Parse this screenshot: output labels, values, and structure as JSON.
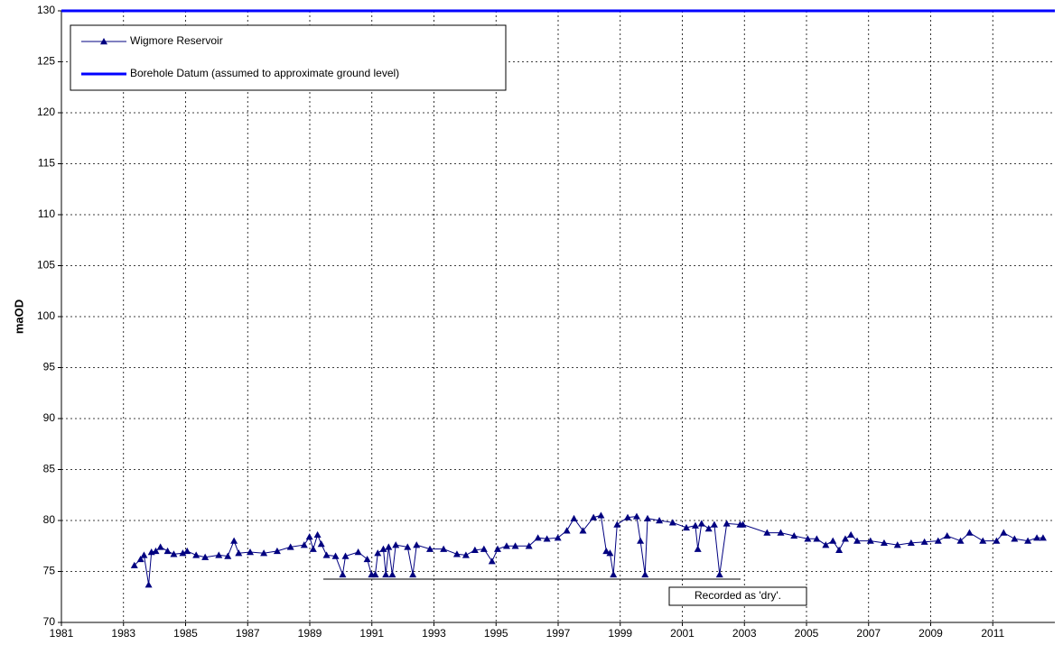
{
  "chart_data": {
    "type": "line",
    "ylabel": "maOD",
    "annotation": "Recorded as 'dry'.",
    "xlim": [
      1981,
      2013
    ],
    "xticks": [
      1981,
      1983,
      1985,
      1987,
      1989,
      1991,
      1993,
      1995,
      1997,
      1999,
      2001,
      2003,
      2005,
      2007,
      2009,
      2011
    ],
    "ylim": [
      70,
      130
    ],
    "yticks": [
      70,
      75,
      80,
      85,
      90,
      95,
      100,
      105,
      110,
      115,
      120,
      125,
      130
    ],
    "grid": true,
    "legend": "upper-left",
    "series": [
      {
        "name": "Wigmore Reservoir",
        "color": "#000080",
        "marker": "triangle",
        "x": [
          1983.35,
          1983.55,
          1983.66,
          1983.81,
          1983.9,
          1984.04,
          1984.19,
          1984.42,
          1984.62,
          1984.91,
          1985.05,
          1985.34,
          1985.63,
          1986.07,
          1986.36,
          1986.56,
          1986.71,
          1987.08,
          1987.52,
          1987.95,
          1988.38,
          1988.82,
          1988.99,
          1989.11,
          1989.25,
          1989.37,
          1989.54,
          1989.83,
          1990.06,
          1990.15,
          1990.56,
          1990.85,
          1990.99,
          1991.11,
          1991.19,
          1991.37,
          1991.45,
          1991.54,
          1991.66,
          1991.77,
          1992.15,
          1992.32,
          1992.44,
          1992.87,
          1993.31,
          1993.74,
          1994.03,
          1994.32,
          1994.61,
          1994.87,
          1995.05,
          1995.34,
          1995.62,
          1996.06,
          1996.35,
          1996.64,
          1996.99,
          1997.28,
          1997.51,
          1997.8,
          1998.14,
          1998.38,
          1998.55,
          1998.67,
          1998.78,
          1998.9,
          1999.24,
          1999.53,
          1999.65,
          1999.8,
          1999.88,
          2000.26,
          2000.69,
          2001.13,
          2001.42,
          2001.5,
          2001.62,
          2001.85,
          2002.03,
          2002.2,
          2002.43,
          2002.86,
          2002.95,
          2003.73,
          2004.17,
          2004.6,
          2005.04,
          2005.33,
          2005.62,
          2005.85,
          2006.05,
          2006.25,
          2006.43,
          2006.63,
          2007.06,
          2007.5,
          2007.93,
          2008.37,
          2008.8,
          2009.24,
          2009.53,
          2009.96,
          2010.25,
          2010.68,
          2011.12,
          2011.35,
          2011.7,
          2012.13,
          2012.42,
          2012.62
        ],
        "values": [
          75.6,
          76.2,
          76.6,
          73.7,
          76.9,
          77.0,
          77.4,
          77.0,
          76.7,
          76.8,
          77.0,
          76.6,
          76.4,
          76.6,
          76.5,
          78.0,
          76.8,
          76.9,
          76.8,
          77.0,
          77.4,
          77.6,
          78.4,
          77.2,
          78.6,
          77.7,
          76.6,
          76.5,
          74.7,
          76.5,
          76.9,
          76.2,
          74.7,
          74.7,
          76.8,
          77.2,
          74.7,
          77.4,
          74.7,
          77.6,
          77.4,
          74.7,
          77.6,
          77.2,
          77.2,
          76.7,
          76.6,
          77.1,
          77.2,
          76.0,
          77.2,
          77.5,
          77.5,
          77.5,
          78.3,
          78.2,
          78.3,
          79.0,
          80.2,
          79.0,
          80.3,
          80.5,
          77.0,
          76.8,
          74.7,
          79.6,
          80.3,
          80.4,
          78.0,
          74.7,
          80.2,
          80.0,
          79.8,
          79.3,
          79.5,
          77.2,
          79.7,
          79.2,
          79.6,
          74.7,
          79.7,
          79.6,
          79.6,
          78.8,
          78.8,
          78.5,
          78.2,
          78.2,
          77.6,
          78.0,
          77.1,
          78.2,
          78.6,
          78.0,
          78.0,
          77.8,
          77.6,
          77.8,
          77.9,
          78.0,
          78.5,
          78.0,
          78.8,
          78.0,
          78.0,
          78.8,
          78.2,
          78.0,
          78.3,
          78.3
        ]
      },
      {
        "name": "Borehole Datum (assumed to approximate ground level)",
        "color": "#0000ff",
        "x": [
          1981,
          2013
        ],
        "values": [
          130,
          130
        ]
      }
    ]
  }
}
